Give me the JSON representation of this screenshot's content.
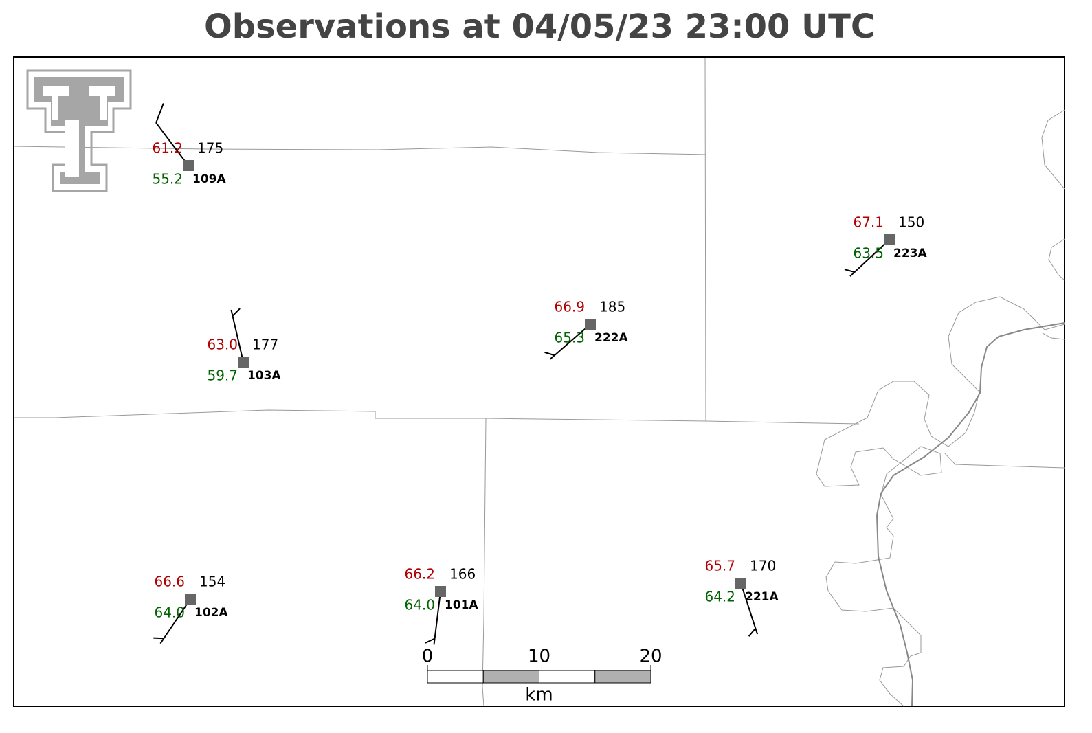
{
  "title": "Observations at 04/05/23 23:00 UTC",
  "stations": [
    {
      "id": "109A",
      "temperature": "61.2",
      "dewpoint": "55.2",
      "pressure": "175",
      "wind_dir": 323,
      "wind_speed": 10
    },
    {
      "id": "103A",
      "temperature": "63.0",
      "dewpoint": "59.7",
      "pressure": "177",
      "wind_dir": 347,
      "wind_speed": 5
    },
    {
      "id": "222A",
      "temperature": "66.9",
      "dewpoint": "65.3",
      "pressure": "185",
      "wind_dir": 229,
      "wind_speed": 5
    },
    {
      "id": "223A",
      "temperature": "67.1",
      "dewpoint": "63.5",
      "pressure": "150",
      "wind_dir": 227,
      "wind_speed": 5
    },
    {
      "id": "102A",
      "temperature": "66.6",
      "dewpoint": "64.0",
      "pressure": "154",
      "wind_dir": 214,
      "wind_speed": 5
    },
    {
      "id": "101A",
      "temperature": "66.2",
      "dewpoint": "64.0",
      "pressure": "166",
      "wind_dir": 187,
      "wind_speed": 5
    },
    {
      "id": "221A",
      "temperature": "65.7",
      "dewpoint": "64.2",
      "pressure": "170",
      "wind_dir": 162,
      "wind_speed": 5
    }
  ],
  "scale_bar": {
    "ticks": [
      0,
      10,
      20
    ],
    "unit": "km"
  }
}
